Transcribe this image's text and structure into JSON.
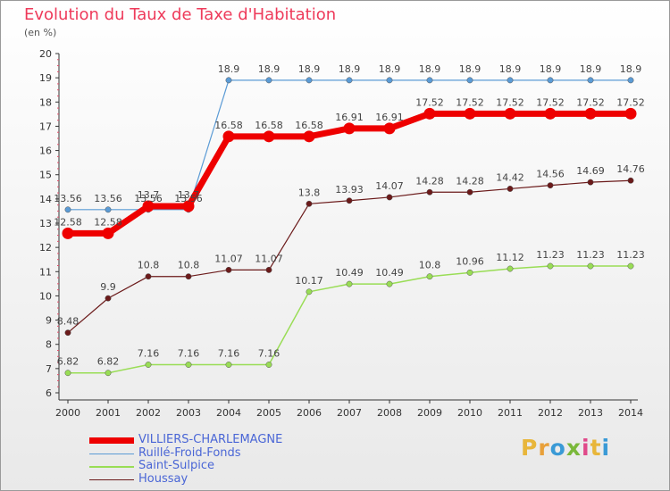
{
  "page": {
    "title": "Evolution du Taux de Taxe d'Habitation",
    "unit": "(en %)"
  },
  "logo": {
    "text": "Proxiti",
    "colors": [
      "#e8b63a",
      "#e8a03a",
      "#3a9ad6",
      "#7ab83a",
      "#e04a8a",
      "#e8b63a",
      "#3a9ad6"
    ]
  },
  "chart_data": {
    "type": "line",
    "title": "Evolution du Taux de Taxe d'Habitation",
    "ylabel": "(en %)",
    "x": [
      "2000",
      "2001",
      "2002",
      "2003",
      "2004",
      "2005",
      "2006",
      "2007",
      "2008",
      "2009",
      "2010",
      "2011",
      "2012",
      "2013",
      "2014"
    ],
    "yticks": [
      "6",
      "7",
      "8",
      "9",
      "10",
      "11",
      "12",
      "13",
      "14",
      "15",
      "16",
      "17",
      "18",
      "19",
      "20"
    ],
    "ylim": [
      6,
      20
    ],
    "grid": false,
    "legend_position": "bottom-left",
    "series": [
      {
        "name": "VILLIERS-CHARLEMAGNE",
        "color": "#ee0000",
        "width": 7,
        "values": [
          12.58,
          12.58,
          13.7,
          13.7,
          16.58,
          16.58,
          16.58,
          16.91,
          16.91,
          17.52,
          17.52,
          17.52,
          17.52,
          17.52,
          17.52
        ],
        "labels": [
          "12.58",
          "12.58",
          "13.7",
          "13.7",
          "16.58",
          "16.58",
          "16.58",
          "16.91",
          "16.91",
          "17.52",
          "17.52",
          "17.52",
          "17.52",
          "17.52",
          "17.52"
        ]
      },
      {
        "name": "Ruillé-Froid-Fonds",
        "color": "#5b9bd5",
        "width": 1.2,
        "values": [
          13.56,
          13.56,
          13.56,
          13.56,
          18.9,
          18.9,
          18.9,
          18.9,
          18.9,
          18.9,
          18.9,
          18.9,
          18.9,
          18.9,
          18.9
        ],
        "labels": [
          "13.56",
          "13.56",
          "13.56",
          "13.56",
          "18.9",
          "18.9",
          "18.9",
          "18.9",
          "18.9",
          "18.9",
          "18.9",
          "18.9",
          "18.9",
          "18.9",
          "18.9"
        ]
      },
      {
        "name": "Saint-Sulpice",
        "color": "#99dd55",
        "width": 1.5,
        "values": [
          6.82,
          6.82,
          7.16,
          7.16,
          7.16,
          7.16,
          10.17,
          10.49,
          10.49,
          10.8,
          10.96,
          11.12,
          11.23,
          11.23,
          11.23
        ],
        "labels": [
          "6.82",
          "6.82",
          "7.16",
          "7.16",
          "7.16",
          "7.16",
          "10.17",
          "10.49",
          "10.49",
          "10.8",
          "10.96",
          "11.12",
          "11.23",
          "11.23",
          "11.23"
        ]
      },
      {
        "name": "Houssay",
        "color": "#6b1a1a",
        "width": 1.2,
        "values": [
          8.48,
          9.9,
          10.8,
          10.8,
          11.07,
          11.07,
          13.8,
          13.93,
          14.07,
          14.28,
          14.28,
          14.42,
          14.56,
          14.69,
          14.76
        ],
        "labels": [
          "8.48",
          "9.9",
          "10.8",
          "10.8",
          "11.07",
          "11.07",
          "13.8",
          "13.93",
          "14.07",
          "14.28",
          "14.28",
          "14.42",
          "14.56",
          "14.69",
          "14.76"
        ]
      }
    ]
  }
}
